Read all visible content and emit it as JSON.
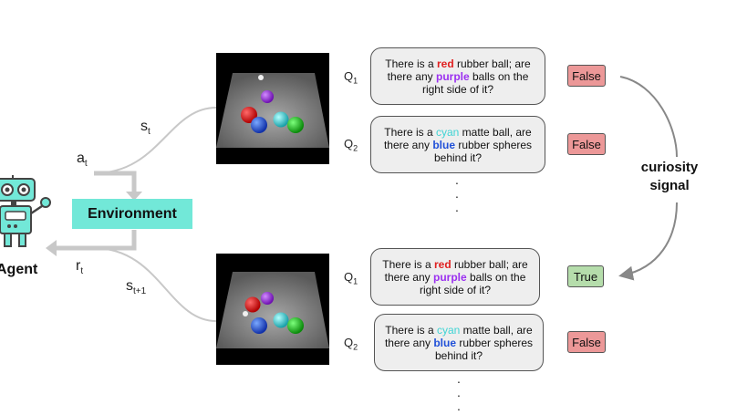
{
  "agent": {
    "label": "Agent",
    "icon": "robot-icon",
    "color": "#72e8d8"
  },
  "environment": {
    "label": "Environment",
    "color": "#72e8d8"
  },
  "symbols": {
    "a": {
      "base": "a",
      "sub": "t"
    },
    "r": {
      "base": "r",
      "sub": "t"
    },
    "s_t": {
      "base": "s",
      "sub": "t"
    },
    "s_t1": {
      "base": "s",
      "sub": "t+1"
    }
  },
  "curiosity": {
    "line1": "curiosity",
    "line2": "signal"
  },
  "groups": [
    {
      "questions": [
        {
          "label": {
            "base": "Q",
            "sub": "1"
          },
          "parts": [
            "There is a ",
            "red",
            " rubber ball; are there any ",
            "purple",
            " balls on the right side of it?"
          ],
          "answer": "False"
        },
        {
          "label": {
            "base": "Q",
            "sub": "2"
          },
          "parts": [
            "There is a ",
            "cyan",
            " matte ball, are there any ",
            "blue",
            " rubber spheres behind it?"
          ],
          "answer": "False"
        }
      ],
      "dots": "."
    },
    {
      "questions": [
        {
          "label": {
            "base": "Q",
            "sub": "1"
          },
          "parts": [
            "There is a ",
            "red",
            " rubber ball; are there any ",
            "purple",
            " balls on the right side of it?"
          ],
          "answer": "True"
        },
        {
          "label": {
            "base": "Q",
            "sub": "2"
          },
          "parts": [
            "There is a ",
            "cyan",
            " matte ball, are there any ",
            "blue",
            " rubber spheres behind it?"
          ],
          "answer": "False"
        }
      ],
      "dots": "."
    }
  ],
  "colors": {
    "false_bg": "#ec9898",
    "true_bg": "#b5ddab",
    "arrow": "#c8c8c8",
    "curiosity_arrow": "#888888"
  }
}
